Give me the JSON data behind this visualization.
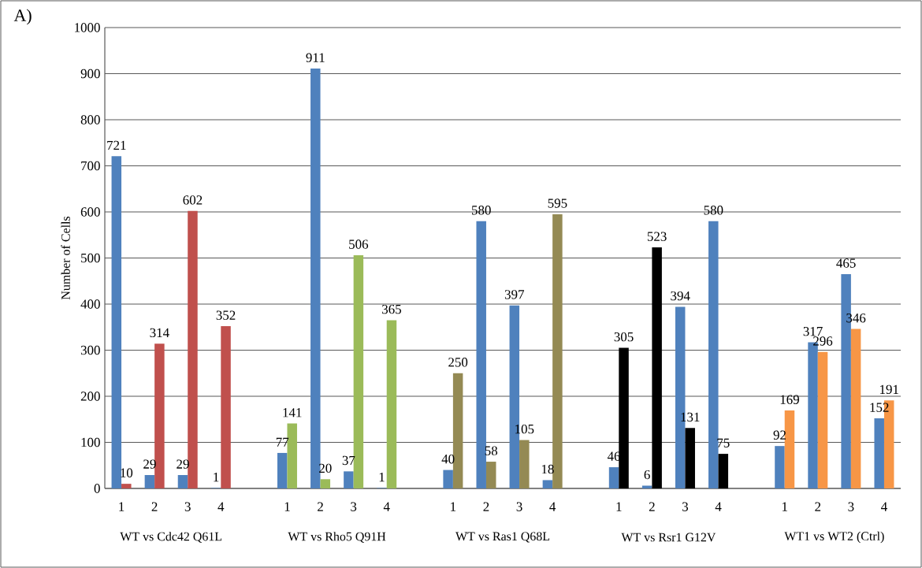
{
  "chart_data": {
    "type": "bar",
    "categories": [
      "1",
      "2",
      "3",
      "4",
      null,
      "1",
      "2",
      "3",
      "4",
      null,
      "1",
      "2",
      "3",
      "4",
      null,
      "1",
      "2",
      "3",
      "4",
      null,
      "1",
      "2",
      "3",
      "4"
    ],
    "series": [
      {
        "color": "#4f81bd",
        "values": [
          721,
          29,
          29,
          1,
          null,
          77,
          911,
          37,
          1,
          null,
          40,
          580,
          397,
          18,
          null,
          46,
          6,
          394,
          580,
          null,
          92,
          317,
          465,
          152
        ]
      },
      {
        "colors": [
          "#c0504d",
          "#c0504d",
          "#c0504d",
          "#c0504d",
          null,
          "#9bbb59",
          "#9bbb59",
          "#9bbb59",
          "#9bbb59",
          null,
          "#948a54",
          "#948a54",
          "#948a54",
          "#948a54",
          null,
          "#000000",
          "#000000",
          "#000000",
          "#000000",
          null,
          "#f79646",
          "#f79646",
          "#f79646",
          "#f79646"
        ],
        "values": [
          10,
          314,
          602,
          352,
          null,
          141,
          20,
          506,
          365,
          null,
          250,
          58,
          105,
          595,
          null,
          305,
          523,
          131,
          75,
          null,
          169,
          296,
          346,
          191
        ]
      }
    ],
    "ylabel": "Number of Cells",
    "ylim": [
      0,
      1000
    ],
    "yticks": [
      0,
      100,
      200,
      300,
      400,
      500,
      600,
      700,
      800,
      900,
      1000
    ],
    "grid": "y",
    "data_labels": true,
    "annotations": [
      "A)",
      "WT vs Cdc42 Q61L",
      "WT vs Rho5 Q91H",
      "WT vs Ras1 Q68L",
      "WT vs Rsr1 G12V",
      "WT1 vs WT2 (Ctrl)"
    ]
  }
}
